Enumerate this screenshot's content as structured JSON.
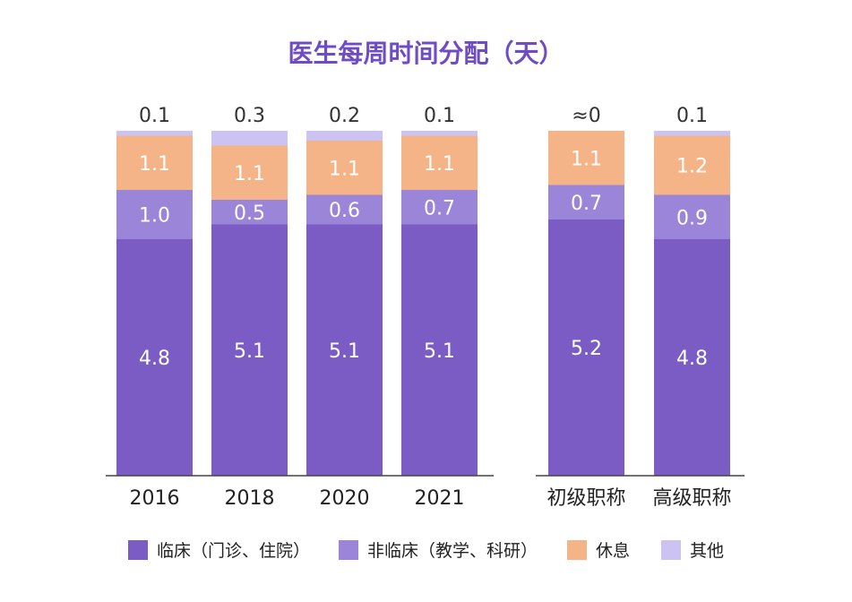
{
  "chart_data": {
    "type": "bar",
    "stacked": true,
    "title": "医生每周时间分配（天）",
    "categories": [
      "2016",
      "2018",
      "2020",
      "2021",
      "初级职称",
      "高级职称"
    ],
    "groups": [
      {
        "categories": [
          "2016",
          "2018",
          "2020",
          "2021"
        ]
      },
      {
        "categories": [
          "初级职称",
          "高级职称"
        ]
      }
    ],
    "series": [
      {
        "name": "临床（门诊、住院）",
        "color": "#7b5cc5",
        "values": [
          4.8,
          5.1,
          5.1,
          5.1,
          5.2,
          4.8
        ],
        "labels": [
          "4.8",
          "5.1",
          "5.1",
          "5.1",
          "5.2",
          "4.8"
        ]
      },
      {
        "name": "非临床（教学、科研）",
        "color": "#9b85d8",
        "values": [
          1.0,
          0.5,
          0.6,
          0.7,
          0.7,
          0.9
        ],
        "labels": [
          "1.0",
          "0.5",
          "0.6",
          "0.7",
          "0.7",
          "0.9"
        ]
      },
      {
        "name": "休息",
        "color": "#f5b487",
        "values": [
          1.1,
          1.1,
          1.1,
          1.1,
          1.1,
          1.2
        ],
        "labels": [
          "1.1",
          "1.1",
          "1.1",
          "1.1",
          "1.1",
          "1.2"
        ]
      },
      {
        "name": "其他",
        "color": "#ccc3f2",
        "values": [
          0.1,
          0.3,
          0.2,
          0.1,
          0,
          0.1
        ],
        "labels": [
          "0.1",
          "0.3",
          "0.2",
          "0.1",
          "≈0",
          "0.1"
        ]
      }
    ],
    "ylim": [
      0,
      7.1
    ],
    "legend_position": "bottom",
    "grid": false
  }
}
